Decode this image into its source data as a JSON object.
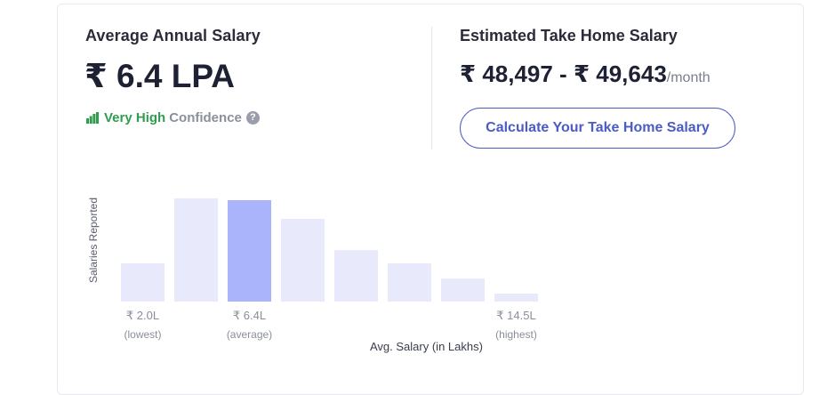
{
  "average_salary": {
    "title": "Average Annual Salary",
    "value": "₹ 6.4 LPA",
    "confidence_level": "Very High",
    "confidence_label": "Confidence",
    "confidence_color": "#2e9e4e"
  },
  "take_home": {
    "title": "Estimated Take Home Salary",
    "range": "₹ 48,497 - ₹ 49,643",
    "unit": "/month",
    "button_label": "Calculate Your Take Home Salary",
    "accent_color": "#4b5cc4"
  },
  "chart_data": {
    "type": "bar",
    "ylabel": "Salaries Reported",
    "xlabel": "Avg. Salary (in Lakhs)",
    "values": [
      37,
      100,
      98,
      80,
      50,
      37,
      22,
      8
    ],
    "highlight_index": 2,
    "bar_color": "#e8eafb",
    "highlight_color": "#a9b4fb",
    "tick_labels": [
      {
        "index": 0,
        "value": "₹ 2.0L",
        "sub": "(lowest)"
      },
      {
        "index": 2,
        "value": "₹ 6.4L",
        "sub": "(average)"
      },
      {
        "index": 7,
        "value": "₹ 14.5L",
        "sub": "(highest)"
      }
    ]
  }
}
